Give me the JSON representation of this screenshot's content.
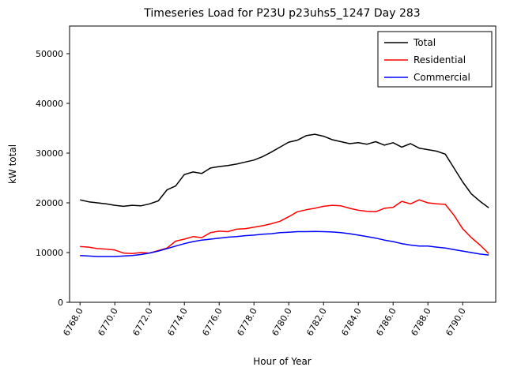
{
  "window": {
    "title": "Timeseries Load for P23U p23uhs5_1247  Day 283"
  },
  "chart_data": {
    "type": "line",
    "title": "Timeseries Load for P23U p23uhs5_1247  Day 283",
    "xlabel": "Hour of Year",
    "ylabel": "kW total",
    "xlim": [
      6767.4,
      6791.9
    ],
    "ylim": [
      0,
      55555
    ],
    "grid": false,
    "legend_position": "upper right",
    "xticks": [
      "6768.0",
      "6770.0",
      "6772.0",
      "6774.0",
      "6776.0",
      "6778.0",
      "6780.0",
      "6782.0",
      "6784.0",
      "6786.0",
      "6788.0",
      "6790.0"
    ],
    "xtick_values": [
      6768,
      6770,
      6772,
      6774,
      6776,
      6778,
      6780,
      6782,
      6784,
      6786,
      6788,
      6790
    ],
    "yticks": [
      "0",
      "10000",
      "20000",
      "30000",
      "40000",
      "50000"
    ],
    "ytick_values": [
      0,
      10000,
      20000,
      30000,
      40000,
      50000
    ],
    "x": [
      6768.0,
      6768.5,
      6769.0,
      6769.5,
      6770.0,
      6770.5,
      6771.0,
      6771.5,
      6772.0,
      6772.5,
      6773.0,
      6773.5,
      6774.0,
      6774.5,
      6775.0,
      6775.5,
      6776.0,
      6776.5,
      6777.0,
      6777.5,
      6778.0,
      6778.5,
      6779.0,
      6779.5,
      6780.0,
      6780.5,
      6781.0,
      6781.5,
      6782.0,
      6782.5,
      6783.0,
      6783.5,
      6784.0,
      6784.5,
      6785.0,
      6785.5,
      6786.0,
      6786.5,
      6787.0,
      6787.5,
      6788.0,
      6788.5,
      6789.0,
      6789.5,
      6790.0,
      6790.5,
      6791.0,
      6791.5
    ],
    "series": [
      {
        "name": "Total",
        "color": "#000000",
        "values": [
          20600,
          20200,
          20000,
          19800,
          19500,
          19300,
          19500,
          19400,
          19800,
          20400,
          22600,
          23400,
          25700,
          26200,
          25900,
          27000,
          27300,
          27500,
          27800,
          28200,
          28600,
          29300,
          30200,
          31200,
          32200,
          32600,
          33500,
          33800,
          33400,
          32700,
          32300,
          31900,
          32100,
          31800,
          32300,
          31600,
          32100,
          31200,
          31900,
          31000,
          30700,
          30400,
          29800,
          27000,
          24200,
          21800,
          20300,
          19000
        ]
      },
      {
        "name": "Residential",
        "color": "#ff0000",
        "values": [
          11200,
          11100,
          10800,
          10700,
          10500,
          9900,
          9800,
          10000,
          9900,
          10400,
          10900,
          12300,
          12700,
          13200,
          13000,
          14000,
          14300,
          14200,
          14700,
          14800,
          15100,
          15400,
          15800,
          16300,
          17200,
          18200,
          18600,
          18900,
          19300,
          19500,
          19400,
          18900,
          18500,
          18300,
          18200,
          18900,
          19100,
          20300,
          19800,
          20600,
          20000,
          19800,
          19700,
          17500,
          14800,
          13000,
          11500,
          9800
        ]
      },
      {
        "name": "Commercial",
        "color": "#0000ff",
        "values": [
          9400,
          9300,
          9200,
          9200,
          9200,
          9300,
          9400,
          9600,
          9900,
          10300,
          10800,
          11300,
          11800,
          12200,
          12500,
          12700,
          12900,
          13100,
          13200,
          13400,
          13500,
          13700,
          13800,
          14000,
          14100,
          14200,
          14200,
          14250,
          14200,
          14150,
          14000,
          13800,
          13500,
          13200,
          12900,
          12500,
          12200,
          11800,
          11500,
          11300,
          11300,
          11100,
          10900,
          10600,
          10300,
          10000,
          9700,
          9500
        ]
      }
    ]
  }
}
